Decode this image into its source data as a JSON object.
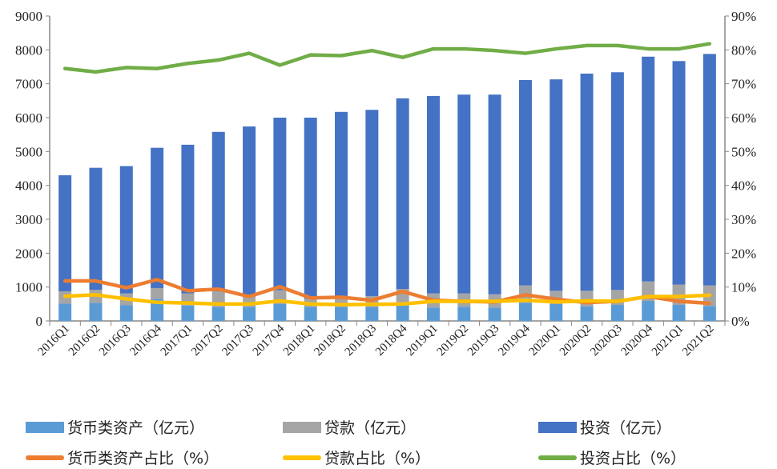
{
  "chart_data": {
    "type": "bar",
    "title": "",
    "categories": [
      "2016Q1",
      "2016Q2",
      "2016Q3",
      "2016Q4",
      "2017Q1",
      "2017Q2",
      "2017Q3",
      "2017Q4",
      "2018Q1",
      "2018Q2",
      "2018Q3",
      "2018Q4",
      "2019Q1",
      "2019Q2",
      "2019Q3",
      "2019Q4",
      "2020Q1",
      "2020Q2",
      "2020Q3",
      "2020Q4",
      "2021Q1",
      "2021Q2"
    ],
    "y_left": {
      "range": [
        0,
        9000
      ],
      "ticks": [
        "0",
        "1000",
        "2000",
        "3000",
        "4000",
        "5000",
        "6000",
        "7000",
        "8000",
        "9000"
      ]
    },
    "y_right": {
      "range": [
        0,
        90
      ],
      "ticks": [
        "0%",
        "10%",
        "20%",
        "30%",
        "40%",
        "50%",
        "60%",
        "70%",
        "80%",
        "90%"
      ]
    },
    "bar_series": [
      {
        "name": "货币类资产（亿元）",
        "color": "#5b9bd5",
        "stacked": true,
        "values": [
          510,
          535,
          470,
          655,
          456,
          418,
          418,
          496,
          418,
          418,
          418,
          456,
          394,
          418,
          394,
          536,
          496,
          433,
          472,
          590,
          472,
          440
        ]
      },
      {
        "name": "贷款（亿元）",
        "color": "#a5a5a5",
        "stacked": true,
        "values": [
          365,
          385,
          340,
          315,
          354,
          457,
          315,
          409,
          237,
          315,
          315,
          489,
          416,
          392,
          393,
          511,
          394,
          457,
          442,
          576,
          599,
          607
        ]
      },
      {
        "name": "投资（亿元）",
        "color": "#4472c4",
        "stacked": true,
        "values": [
          3425,
          3600,
          3760,
          4140,
          4390,
          4705,
          5007,
          5095,
          5345,
          5437,
          5497,
          5625,
          5830,
          5870,
          5893,
          6063,
          6240,
          6410,
          6426,
          6634,
          6599,
          6833
        ]
      }
    ],
    "line_series": [
      {
        "name": "货币类资产占比（%）",
        "color": "#ed7d31",
        "axis": "right",
        "values": [
          11.8,
          11.8,
          9.8,
          12.2,
          8.9,
          9.4,
          7.2,
          10.1,
          6.8,
          7.0,
          6.1,
          8.7,
          6.1,
          5.8,
          5.6,
          7.7,
          6.4,
          5.4,
          5.8,
          7.2,
          5.8,
          5.2
        ]
      },
      {
        "name": "贷款占比（%）",
        "color": "#ffc000",
        "axis": "right",
        "values": [
          7.3,
          7.7,
          6.5,
          5.5,
          5.3,
          5.0,
          5.0,
          5.9,
          5.0,
          4.8,
          4.9,
          5.0,
          5.8,
          5.8,
          5.8,
          6.1,
          5.6,
          5.9,
          5.8,
          7.2,
          7.2,
          7.6
        ]
      },
      {
        "name": "投资占比（%）",
        "color": "#70ad47",
        "axis": "right",
        "values": [
          74.5,
          73.5,
          74.8,
          74.5,
          76.0,
          77.0,
          79.0,
          75.5,
          78.5,
          78.3,
          79.8,
          77.8,
          80.3,
          80.3,
          79.8,
          79.0,
          80.3,
          81.3,
          81.3,
          80.3,
          80.3,
          81.8
        ]
      }
    ],
    "grid": false,
    "legend_position": "bottom"
  }
}
